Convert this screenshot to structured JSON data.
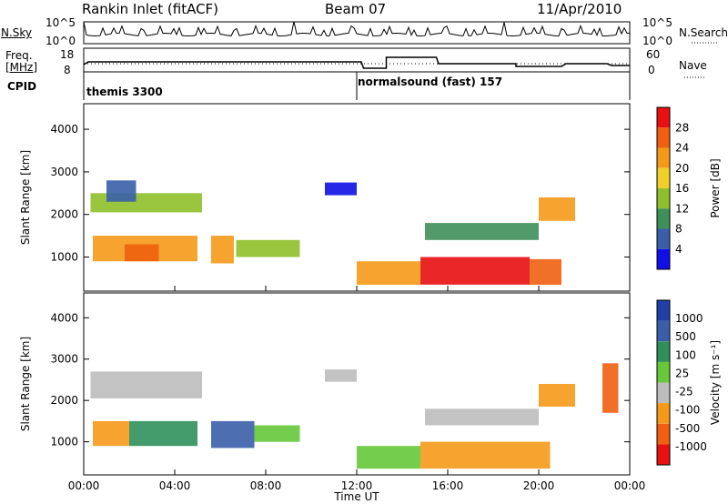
{
  "header": {
    "station": "Rankin Inlet (fitACF)",
    "beam": "Beam 07",
    "date": "11/Apr/2010"
  },
  "strip_labels": {
    "nsky": "N.Sky",
    "nsky_ticks": [
      "10^5",
      "10^0"
    ],
    "freq_top": "Freq.",
    "freq_unit": "[MHz]",
    "freq_ticks": [
      "18",
      "8"
    ],
    "cpid": "CPID",
    "nsearch": "N.Search",
    "nsearch_ticks": [
      "10^5",
      "10^0"
    ],
    "nave": "Nave",
    "nave_ticks": [
      "60",
      "0"
    ]
  },
  "cpid_modes": [
    {
      "label": "themis 3300",
      "start_hour": 0
    },
    {
      "label": "normalsound (fast) 157",
      "start_hour": 12
    }
  ],
  "colors": {
    "power": [
      "#1010e6",
      "#3a5fa8",
      "#3f8f5a",
      "#8fbf2a",
      "#f0d028",
      "#f59a18",
      "#f06010",
      "#e81010"
    ],
    "velocity": [
      "#e81010",
      "#f06010",
      "#f59a18",
      "#bdbdbd",
      "#66c83a",
      "#2f8f5a",
      "#3a5fa8",
      "#2040a8"
    ]
  },
  "chart_data": [
    {
      "type": "heatmap",
      "title": "",
      "xlabel": "Time UT",
      "ylabel": "Slant Range [km]",
      "xlim": [
        0,
        24
      ],
      "ylim": [
        200,
        4600
      ],
      "x_ticks": [
        "00:00",
        "04:00",
        "08:00",
        "12:00",
        "16:00",
        "20:00",
        "00:00"
      ],
      "y_ticks": [
        1000,
        2000,
        3000,
        4000
      ],
      "colorbar_label": "Power [dB]",
      "colorbar_ticks": [
        "28",
        "24",
        "20",
        "16",
        "12",
        "8",
        "4"
      ],
      "regions": [
        {
          "t0": 0.3,
          "t1": 5.2,
          "r0": 2050,
          "r1": 2500,
          "level": 3
        },
        {
          "t0": 1.0,
          "t1": 2.3,
          "r0": 2300,
          "r1": 2800,
          "level": 1
        },
        {
          "t0": 0.4,
          "t1": 5.0,
          "r0": 900,
          "r1": 1500,
          "level": 5
        },
        {
          "t0": 1.8,
          "t1": 3.3,
          "r0": 900,
          "r1": 1300,
          "level": 6
        },
        {
          "t0": 5.6,
          "t1": 6.6,
          "r0": 850,
          "r1": 1500,
          "level": 5
        },
        {
          "t0": 6.7,
          "t1": 9.5,
          "r0": 1000,
          "r1": 1400,
          "level": 3
        },
        {
          "t0": 10.6,
          "t1": 12.0,
          "r0": 2450,
          "r1": 2750,
          "level": 0
        },
        {
          "t0": 12.0,
          "t1": 14.8,
          "r0": 350,
          "r1": 900,
          "level": 5
        },
        {
          "t0": 14.8,
          "t1": 19.6,
          "r0": 350,
          "r1": 1000,
          "level": 7
        },
        {
          "t0": 19.6,
          "t1": 21.0,
          "r0": 350,
          "r1": 950,
          "level": 6
        },
        {
          "t0": 20.0,
          "t1": 21.6,
          "r0": 1850,
          "r1": 2400,
          "level": 5
        },
        {
          "t0": 15.0,
          "t1": 20.0,
          "r0": 1400,
          "r1": 1800,
          "level": 2
        }
      ]
    },
    {
      "type": "heatmap",
      "title": "",
      "xlabel": "Time UT",
      "ylabel": "Slant Range [km]",
      "xlim": [
        0,
        24
      ],
      "ylim": [
        200,
        4600
      ],
      "x_ticks": [
        "00:00",
        "04:00",
        "08:00",
        "12:00",
        "16:00",
        "20:00",
        "00:00"
      ],
      "y_ticks": [
        1000,
        2000,
        3000,
        4000
      ],
      "colorbar_label": "Velocity [m s⁻¹]",
      "colorbar_ticks": [
        "1000",
        "500",
        "100",
        "25",
        "-25",
        "-100",
        "-500",
        "-1000"
      ],
      "regions": [
        {
          "t0": 0.3,
          "t1": 5.2,
          "r0": 2050,
          "r1": 2700,
          "level": 3
        },
        {
          "t0": 0.4,
          "t1": 2.0,
          "r0": 900,
          "r1": 1500,
          "level": 2
        },
        {
          "t0": 2.0,
          "t1": 5.0,
          "r0": 900,
          "r1": 1500,
          "level": 5
        },
        {
          "t0": 5.6,
          "t1": 7.5,
          "r0": 850,
          "r1": 1500,
          "level": 6
        },
        {
          "t0": 7.5,
          "t1": 9.5,
          "r0": 1000,
          "r1": 1400,
          "level": 4
        },
        {
          "t0": 10.6,
          "t1": 12.0,
          "r0": 2450,
          "r1": 2750,
          "level": 3
        },
        {
          "t0": 12.0,
          "t1": 14.8,
          "r0": 350,
          "r1": 900,
          "level": 4
        },
        {
          "t0": 14.8,
          "t1": 20.5,
          "r0": 350,
          "r1": 1000,
          "level": 2
        },
        {
          "t0": 20.0,
          "t1": 21.6,
          "r0": 1850,
          "r1": 2400,
          "level": 2
        },
        {
          "t0": 15.0,
          "t1": 20.0,
          "r0": 1400,
          "r1": 1800,
          "level": 3
        },
        {
          "t0": 22.8,
          "t1": 23.5,
          "r0": 1700,
          "r1": 2900,
          "level": 1
        }
      ]
    }
  ]
}
